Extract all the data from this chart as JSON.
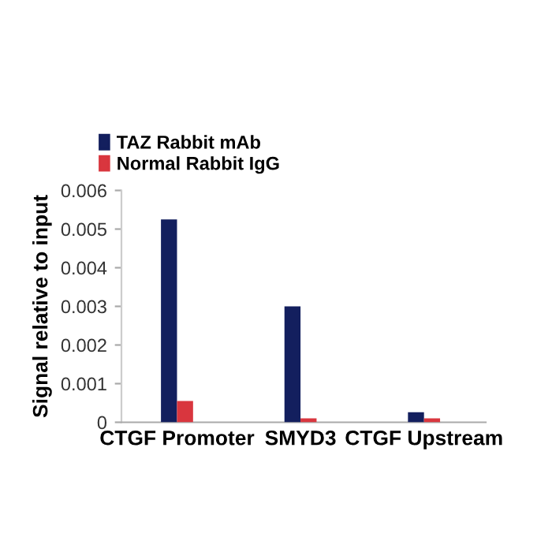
{
  "chart_data": {
    "type": "bar",
    "ylabel": "Signal relative to input",
    "categories": [
      "CTGF Promoter",
      "SMYD3",
      "CTGF Upstream"
    ],
    "series": [
      {
        "name": "TAZ Rabbit mAb",
        "color": "#131f5e",
        "values": [
          0.00525,
          0.003,
          0.00026
        ]
      },
      {
        "name": "Normal Rabbit IgG",
        "color": "#d9363e",
        "values": [
          0.00055,
          0.0001,
          0.0001
        ]
      }
    ],
    "ylim": [
      0,
      0.006
    ],
    "yticks": [
      {
        "value": 0,
        "label": "0"
      },
      0.001,
      0.002,
      0.003,
      0.004,
      0.005,
      0.006
    ],
    "grid": false,
    "legend": "top left"
  }
}
